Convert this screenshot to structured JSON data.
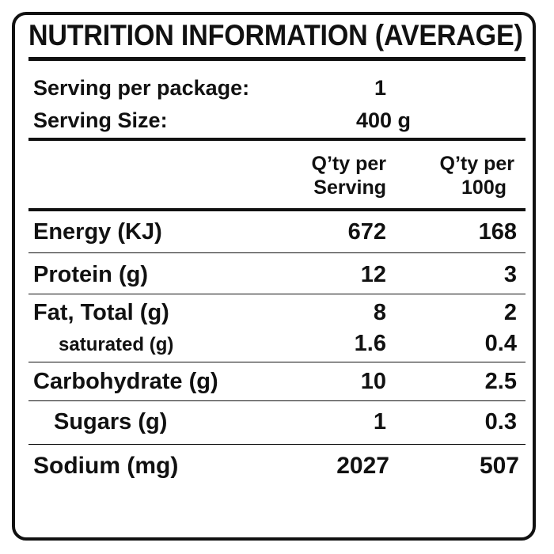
{
  "label": {
    "title": "NUTRITION INFORMATION (AVERAGE)",
    "servings": [
      {
        "label": "Serving per package:",
        "value": "1"
      },
      {
        "label": "Serving Size:",
        "value": "400 g"
      }
    ],
    "column_headers": [
      {
        "line1": "Q’ty per",
        "line2": "Serving"
      },
      {
        "line1": "Q’ty per",
        "line2": "100g"
      }
    ],
    "rows": [
      {
        "name": "Energy (KJ)",
        "per_serving": "672",
        "per_100g": "168"
      },
      {
        "name": "Protein (g)",
        "per_serving": "12",
        "per_100g": "3"
      },
      {
        "name": "Fat, Total (g)",
        "per_serving": "8",
        "per_100g": "2"
      },
      {
        "name": "saturated (g)",
        "per_serving": "1.6",
        "per_100g": "0.4"
      },
      {
        "name": "Carbohydrate (g)",
        "per_serving": "10",
        "per_100g": "2.5"
      },
      {
        "name": "Sugars (g)",
        "per_serving": "1",
        "per_100g": "0.3"
      },
      {
        "name": "Sodium (mg)",
        "per_serving": "2027",
        "per_100g": "507"
      }
    ]
  }
}
